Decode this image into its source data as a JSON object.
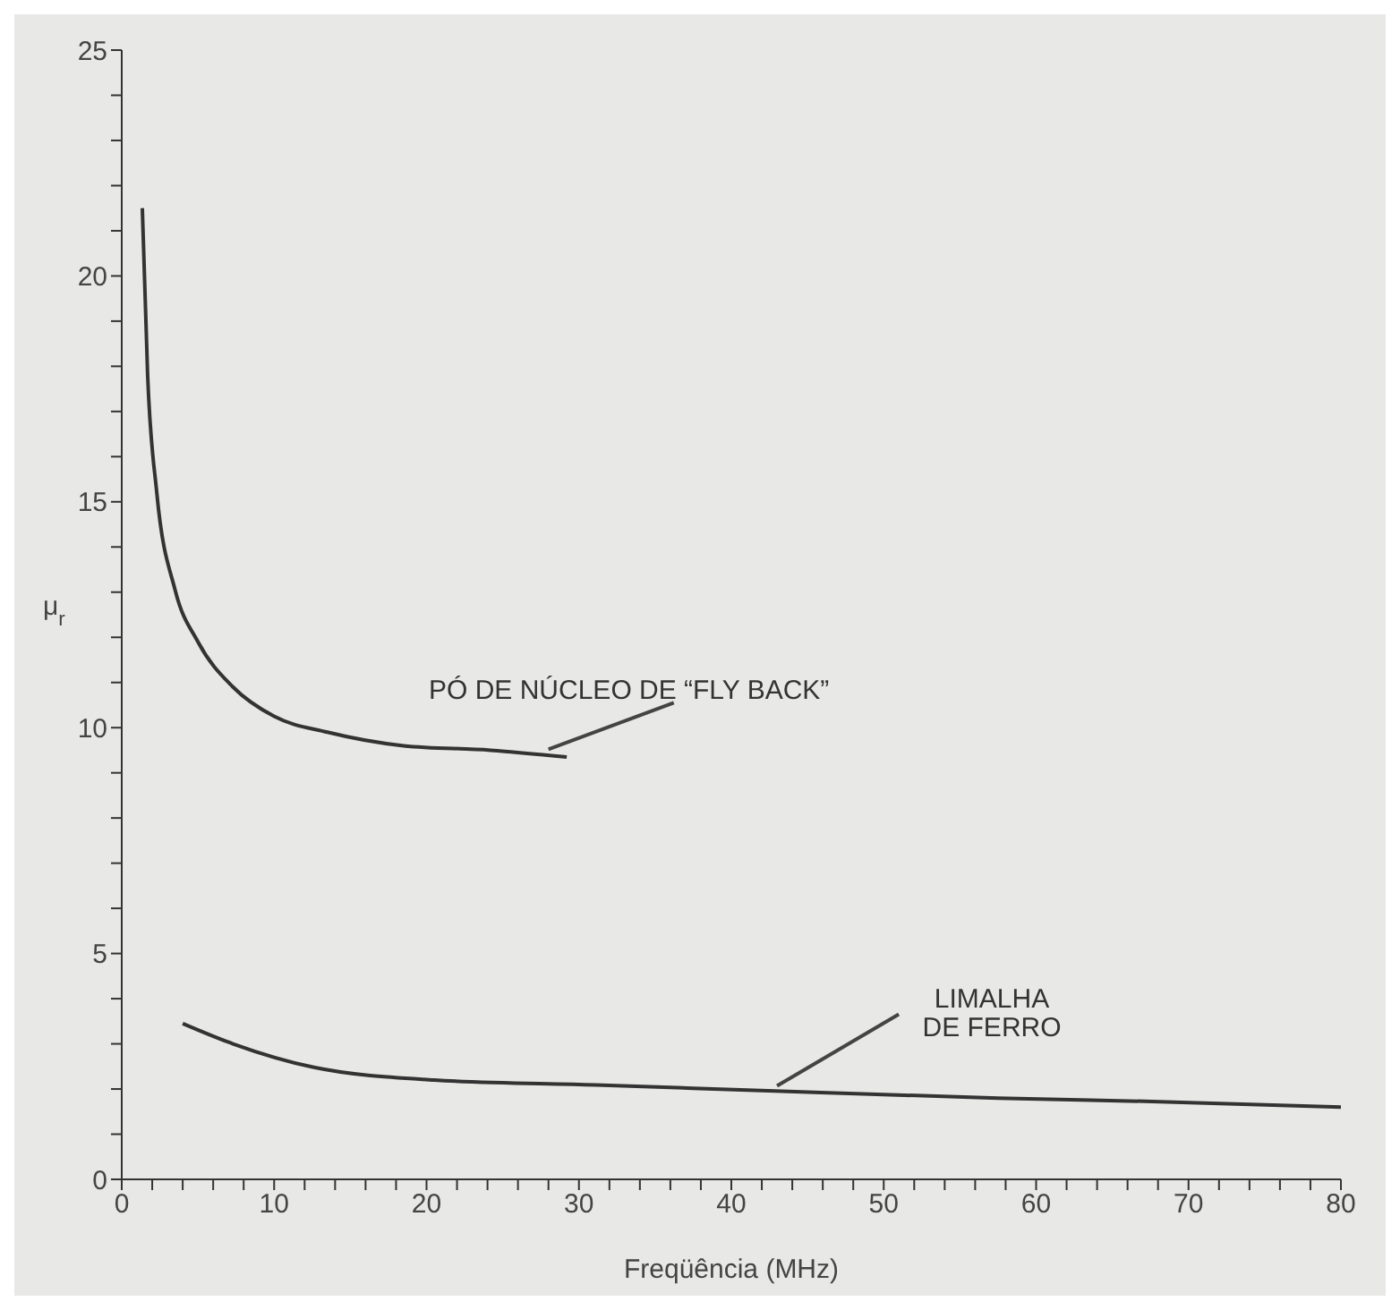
{
  "chart_data": {
    "type": "line",
    "xlabel": "Freqüência (MHz)",
    "ylabel": "μ$_{r}$",
    "xlim": [
      0,
      80
    ],
    "ylim": [
      0,
      25
    ],
    "xticks": [
      0,
      {
        "value": 2,
        "label": null
      },
      {
        "value": 4,
        "label": null
      },
      {
        "value": 6,
        "label": null
      },
      {
        "value": 8,
        "label": null
      },
      10,
      {
        "value": 12,
        "label": null
      },
      {
        "value": 14,
        "label": null
      },
      {
        "value": 16,
        "label": null
      },
      {
        "value": 18,
        "label": null
      },
      20,
      {
        "value": 22,
        "label": null
      },
      {
        "value": 24,
        "label": null
      },
      {
        "value": 26,
        "label": null
      },
      {
        "value": 28,
        "label": null
      },
      30,
      {
        "value": 32,
        "label": null
      },
      {
        "value": 34,
        "label": null
      },
      {
        "value": 36,
        "label": null
      },
      {
        "value": 38,
        "label": null
      },
      40,
      {
        "value": 42,
        "label": null
      },
      {
        "value": 44,
        "label": null
      },
      {
        "value": 46,
        "label": null
      },
      {
        "value": 48,
        "label": null
      },
      50,
      {
        "value": 52,
        "label": null
      },
      {
        "value": 54,
        "label": null
      },
      {
        "value": 56,
        "label": null
      },
      {
        "value": 58,
        "label": null
      },
      60,
      {
        "value": 62,
        "label": null
      },
      {
        "value": 64,
        "label": null
      },
      {
        "value": 66,
        "label": null
      },
      {
        "value": 68,
        "label": null
      },
      70,
      {
        "value": 72,
        "label": null
      },
      {
        "value": 74,
        "label": null
      },
      {
        "value": 76,
        "label": null
      },
      {
        "value": 78,
        "label": null
      },
      80
    ],
    "yticks": [
      0,
      {
        "value": 1,
        "label": null
      },
      {
        "value": 2,
        "label": null
      },
      {
        "value": 3,
        "label": null
      },
      {
        "value": 4,
        "label": null
      },
      5,
      {
        "value": 6,
        "label": null
      },
      {
        "value": 7,
        "label": null
      },
      {
        "value": 8,
        "label": null
      },
      {
        "value": 9,
        "label": null
      },
      10,
      {
        "value": 11,
        "label": null
      },
      {
        "value": 12,
        "label": null
      },
      {
        "value": 13,
        "label": null
      },
      {
        "value": 14,
        "label": null
      },
      15,
      {
        "value": 16,
        "label": null
      },
      {
        "value": 17,
        "label": null
      },
      {
        "value": 18,
        "label": null
      },
      {
        "value": 19,
        "label": null
      },
      20,
      {
        "value": 21,
        "label": null
      },
      {
        "value": 22,
        "label": null
      },
      {
        "value": 23,
        "label": null
      },
      {
        "value": 24,
        "label": null
      },
      25
    ],
    "grid": false,
    "legend": false,
    "marker": "none",
    "line_style": "solid",
    "series": [
      {
        "color": "#333333",
        "x": [
          1.35,
          1.7,
          2.3,
          3.5,
          5.0,
          7.3,
          10,
          13.5,
          18.5,
          24.2,
          29.2
        ],
        "values": [
          21.5,
          17.8,
          15.2,
          13.05,
          11.9,
          10.9,
          10.25,
          9.9,
          9.6,
          9.5,
          9.35
        ]
      },
      {
        "color": "#333333",
        "x": [
          4.0,
          7.3,
          12.6,
          20.5,
          31.1,
          43.3,
          57.5,
          68.1,
          80
        ],
        "values": [
          3.45,
          3.0,
          2.48,
          2.2,
          2.09,
          1.95,
          1.8,
          1.72,
          1.6
        ]
      }
    ],
    "annotations": [
      {
        "text": "PÓ DE NÚCLEO DE “FLY BACK”",
        "x": 28,
        "y": 9.4
      },
      {
        "text": "LIMALHA\nDE FERRO",
        "x": 43,
        "y": 1.95
      }
    ]
  }
}
